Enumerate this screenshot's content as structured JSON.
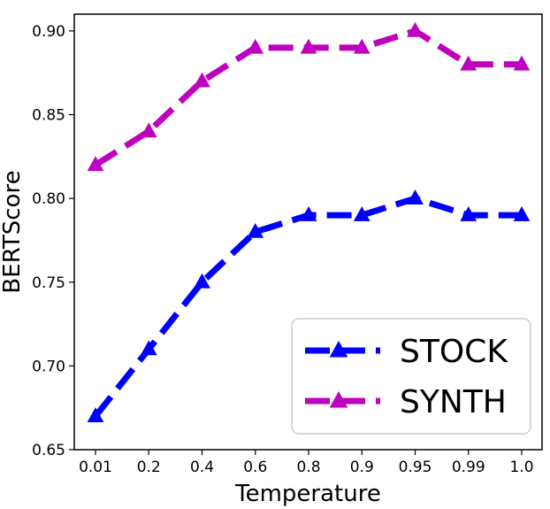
{
  "chart_data": {
    "type": "line",
    "categories": [
      "0.01",
      "0.2",
      "0.4",
      "0.6",
      "0.8",
      "0.9",
      "0.95",
      "0.99",
      "1.0"
    ],
    "series": [
      {
        "name": "STOCK",
        "color": "#0000ff",
        "marker": "triangle",
        "line_style": "dashed",
        "values": [
          0.67,
          0.71,
          0.75,
          0.78,
          0.79,
          0.79,
          0.8,
          0.79,
          0.79
        ]
      },
      {
        "name": "SYNTH",
        "color": "#bf00bf",
        "marker": "triangle",
        "line_style": "dashed",
        "values": [
          0.82,
          0.84,
          0.87,
          0.89,
          0.89,
          0.89,
          0.9,
          0.88,
          0.88
        ]
      }
    ],
    "xlabel": "Temperature",
    "ylabel": "BERTScore",
    "ylim": [
      0.65,
      0.91
    ],
    "yticks": [
      "0.65",
      "0.70",
      "0.75",
      "0.80",
      "0.85",
      "0.90"
    ],
    "ytick_values": [
      0.65,
      0.7,
      0.75,
      0.8,
      0.85,
      0.9
    ],
    "grid": false,
    "legend_position": "bottom-right"
  }
}
